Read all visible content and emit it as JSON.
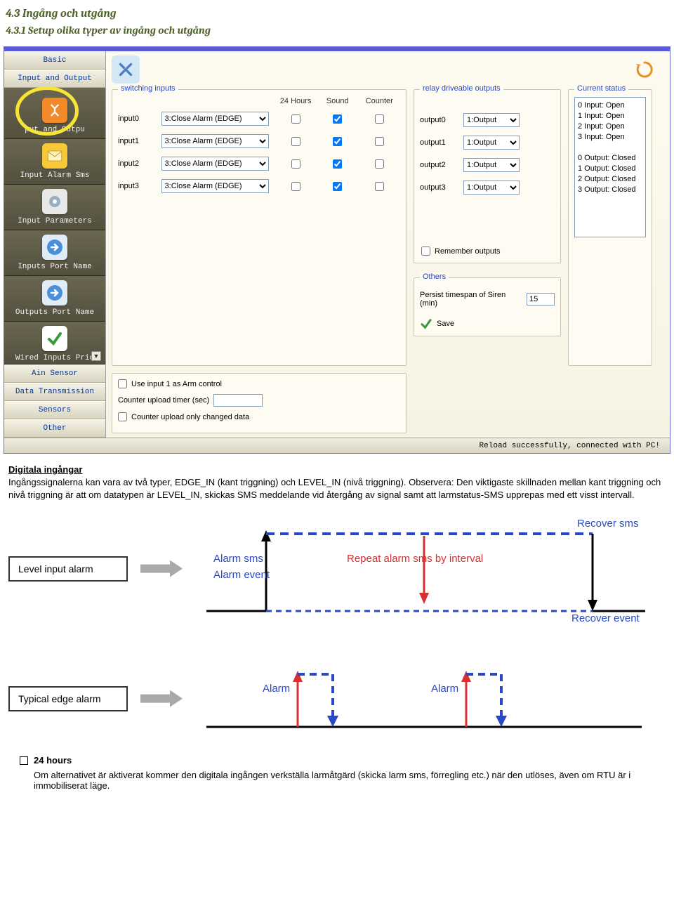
{
  "doc": {
    "h1": "4.3 Ingång och utgång",
    "h2": "4.3.1 Setup olika typer av ingång och utgång",
    "para_title": "Digitala ingångar",
    "para": "Ingångssignalerna kan vara av två typer, EDGE_IN (kant triggning) och LEVEL_IN (nivå triggning). Observera: Den viktigaste skillnaden mellan kant triggning och nivå triggning är att om datatypen är LEVEL_IN, skickas SMS meddelande vid återgång av signal samt att larmstatus-SMS upprepas med ett visst intervall.",
    "bullet_title": "24 hours",
    "bullet_text": "Om alternativet är aktiverat kommer den digitala ingången verkställa larmåtgärd (skicka larm sms, förregling etc.) när den utlöses, även om RTU är i immobiliserat läge."
  },
  "sidebar": {
    "basic": "Basic",
    "io_top": "Input and Output",
    "items": [
      {
        "label": "put and Outpu",
        "icon_bg": "#f28a2a"
      },
      {
        "label": "Input Alarm Sms",
        "icon_bg": "#f6c83a"
      },
      {
        "label": "Input Parameters",
        "icon_bg": "#8fa8c4"
      },
      {
        "label": "Inputs Port Name",
        "icon_bg": "#4a90d9"
      },
      {
        "label": "Outputs Port Name",
        "icon_bg": "#4a90d9"
      },
      {
        "label": "Wired Inputs Prio",
        "icon_bg": "#5cb85c"
      }
    ],
    "bottom": [
      "Ain Sensor",
      "Data Transmission",
      "Sensors",
      "Other"
    ]
  },
  "switching": {
    "title": "switching inputs",
    "headers": {
      "h1": "24 Hours",
      "h2": "Sound",
      "h3": "Counter"
    },
    "rows": [
      {
        "name": "input0",
        "sel": "3:Close Alarm (EDGE)",
        "c1": false,
        "c2": true,
        "c3": false
      },
      {
        "name": "input1",
        "sel": "3:Close Alarm (EDGE)",
        "c1": false,
        "c2": true,
        "c3": false
      },
      {
        "name": "input2",
        "sel": "3:Close Alarm (EDGE)",
        "c1": false,
        "c2": true,
        "c3": false
      },
      {
        "name": "input3",
        "sel": "3:Close Alarm (EDGE)",
        "c1": false,
        "c2": true,
        "c3": false
      }
    ],
    "opt1_label": "Use input 1 as Arm control",
    "opt2_label": "Counter upload timer (sec)",
    "opt2_value": "",
    "opt3_label": "Counter upload only changed data"
  },
  "relay": {
    "title": "relay driveable outputs",
    "rows": [
      {
        "name": "output0",
        "sel": "1:Output"
      },
      {
        "name": "output1",
        "sel": "1:Output"
      },
      {
        "name": "output2",
        "sel": "1:Output"
      },
      {
        "name": "output3",
        "sel": "1:Output"
      }
    ],
    "remember_label": "Remember outputs"
  },
  "status": {
    "title": "Current status",
    "lines": [
      "0  Input: Open",
      "1  Input: Open",
      "2  Input: Open",
      "3  Input: Open",
      "",
      "0 Output: Closed",
      "1 Output: Closed",
      "2 Output: Closed",
      "3 Output: Closed"
    ]
  },
  "others": {
    "title": "Others",
    "persist_label": "Persist timespan of Siren (min)",
    "persist_value": "15",
    "save_label": "Save"
  },
  "statusbar": "Reload successfully, connected with PC!",
  "diagram": {
    "level_label": "Level input alarm",
    "edge_label": "Typical edge alarm",
    "alarm_sms": "Alarm sms",
    "alarm_event": "Alarm event",
    "repeat": "Repeat alarm sms by interval",
    "recover_sms": "Recover sms",
    "recover_event": "Recover event",
    "alarm": "Alarm",
    "colors": {
      "blue": "#2848c8",
      "red": "#d83030",
      "black": "#000000",
      "gray": "#a8aaa7"
    }
  }
}
